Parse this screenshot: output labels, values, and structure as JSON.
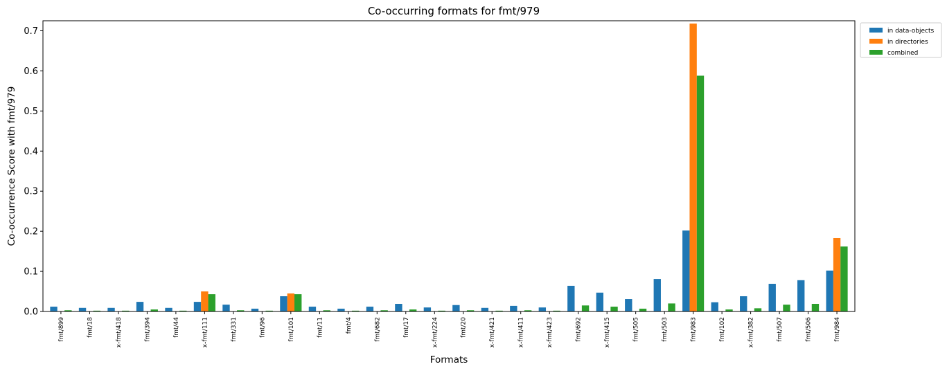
{
  "chart_data": {
    "type": "bar",
    "title": "Co-occurring formats for fmt/979",
    "xlabel": "Formats",
    "ylabel": "Co-occurrence Score with fmt/979",
    "ylim": [
      0,
      0.725
    ],
    "yticks": [
      0.0,
      0.1,
      0.2,
      0.3,
      0.4,
      0.5,
      0.6,
      0.7
    ],
    "ytick_labels": [
      "0.0",
      "0.1",
      "0.2",
      "0.3",
      "0.4",
      "0.5",
      "0.6",
      "0.7"
    ],
    "legend_position": "upper right, outside plot",
    "categories": [
      "fmt/899",
      "fmt/18",
      "x-fmt/418",
      "fmt/394",
      "fmt/44",
      "x-fmt/111",
      "fmt/331",
      "fmt/96",
      "fmt/101",
      "fmt/11",
      "fmt/4",
      "fmt/682",
      "fmt/17",
      "x-fmt/224",
      "fmt/20",
      "x-fmt/421",
      "x-fmt/411",
      "x-fmt/423",
      "fmt/692",
      "x-fmt/415",
      "fmt/505",
      "fmt/503",
      "fmt/983",
      "fmt/102",
      "x-fmt/382",
      "fmt/507",
      "fmt/506",
      "fmt/984"
    ],
    "series": [
      {
        "name": "in data-objects",
        "color": "#1f77b4",
        "values": [
          0.012,
          0.009,
          0.009,
          0.024,
          0.009,
          0.024,
          0.017,
          0.007,
          0.038,
          0.012,
          0.007,
          0.012,
          0.019,
          0.01,
          0.016,
          0.009,
          0.014,
          0.01,
          0.064,
          0.047,
          0.031,
          0.081,
          0.202,
          0.023,
          0.038,
          0.069,
          0.078,
          0.102
        ]
      },
      {
        "name": "in directories",
        "color": "#ff7f0e",
        "values": [
          0.0,
          0.0,
          0.0,
          0.0,
          0.0,
          0.05,
          0.0,
          0.0,
          0.045,
          0.0,
          0.0,
          0.0,
          0.0,
          0.0,
          0.0,
          0.0,
          0.0,
          0.0,
          0.0,
          0.0,
          0.0,
          0.0,
          0.718,
          0.0,
          0.0,
          0.0,
          0.0,
          0.183
        ]
      },
      {
        "name": "combined",
        "color": "#2ca02c",
        "values": [
          0.003,
          0.002,
          0.002,
          0.005,
          0.002,
          0.043,
          0.003,
          0.002,
          0.043,
          0.003,
          0.002,
          0.003,
          0.005,
          0.002,
          0.003,
          0.002,
          0.003,
          0.002,
          0.015,
          0.012,
          0.007,
          0.02,
          0.588,
          0.005,
          0.008,
          0.017,
          0.019,
          0.162
        ]
      }
    ]
  }
}
